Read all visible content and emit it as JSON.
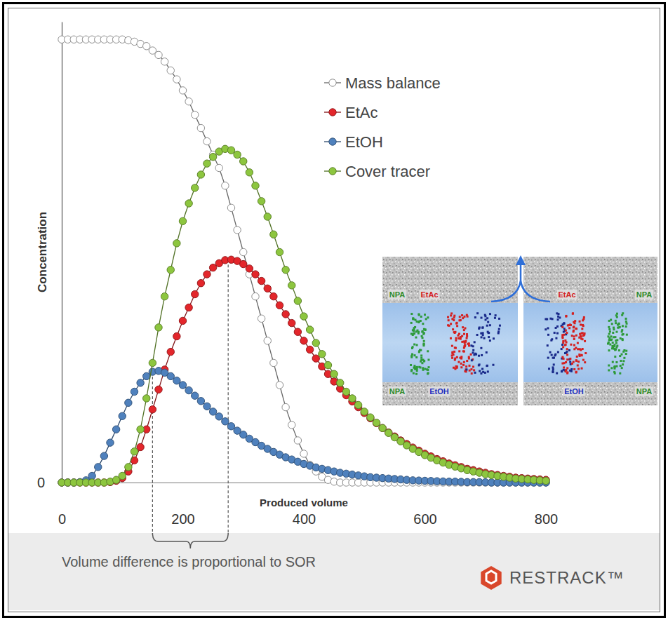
{
  "chart_data": {
    "type": "line",
    "x_label": "Produced volume",
    "y_label": "Concentration",
    "x": [
      0,
      10,
      20,
      30,
      40,
      50,
      60,
      70,
      80,
      90,
      100,
      110,
      120,
      130,
      140,
      150,
      160,
      170,
      180,
      190,
      200,
      210,
      220,
      230,
      240,
      250,
      260,
      270,
      280,
      290,
      300,
      310,
      320,
      330,
      340,
      350,
      360,
      370,
      380,
      390,
      400,
      410,
      420,
      430,
      440,
      450,
      460,
      470,
      480,
      490,
      500,
      510,
      520,
      530,
      540,
      550,
      560,
      570,
      580,
      590,
      600,
      610,
      620,
      630,
      640,
      650,
      660,
      670,
      680,
      690,
      700,
      710,
      720,
      730,
      740,
      750,
      760,
      770,
      780,
      790,
      800
    ],
    "xlim": [
      0,
      800
    ],
    "xticks": [
      0,
      200,
      400,
      600,
      800
    ],
    "ylim": [
      0,
      104
    ],
    "yticks": [
      0
    ],
    "grid": false,
    "legend": "upper right",
    "series": [
      {
        "name": "Mass balance",
        "color": "#8c8c8c",
        "marker": "open-circle",
        "values": [
          100,
          100,
          100,
          100,
          100,
          100,
          100,
          100,
          100,
          100,
          100,
          99.8,
          99.5,
          99,
          98.5,
          97.5,
          96.5,
          95,
          93,
          91,
          88.5,
          86,
          83,
          80,
          77,
          74,
          71,
          67,
          62,
          57,
          52,
          47,
          42,
          37,
          32,
          27,
          22,
          17,
          13,
          9.5,
          6.5,
          4,
          2.5,
          1.3,
          0.6,
          0.2,
          0,
          0,
          0,
          0,
          0,
          0,
          0,
          0,
          0,
          0,
          0,
          0,
          0,
          0,
          0,
          0,
          0,
          0,
          0,
          0,
          0,
          0,
          0,
          0,
          0,
          0,
          0,
          0,
          0,
          0,
          0,
          0,
          0,
          0,
          0
        ]
      },
      {
        "name": "EtAc",
        "color": "#e3262b",
        "marker": "circle",
        "values": [
          0,
          0,
          0,
          0,
          0,
          0,
          0,
          0,
          0.1,
          0.4,
          1,
          2.5,
          5,
          8,
          12,
          16.5,
          21,
          25.5,
          29.5,
          33,
          36.5,
          39.5,
          42.5,
          45,
          47,
          48.5,
          49.5,
          50.2,
          50.3,
          50,
          49.3,
          48.3,
          47,
          45.5,
          43.8,
          42,
          40,
          38,
          36,
          34,
          32,
          30,
          28,
          26.2,
          24.5,
          22.8,
          21.2,
          19.7,
          18.3,
          17,
          15.7,
          14.5,
          13.4,
          12.3,
          11.3,
          10.4,
          9.5,
          8.7,
          7.9,
          7.2,
          6.5,
          5.9,
          5.3,
          4.8,
          4.3,
          3.9,
          3.5,
          3.1,
          2.8,
          2.5,
          2.2,
          1.9,
          1.7,
          1.5,
          1.3,
          1.1,
          1,
          0.9,
          0.8,
          0.7,
          0.6
        ]
      },
      {
        "name": "EtOH",
        "color": "#4f81bd",
        "marker": "circle",
        "values": [
          0,
          0,
          0,
          0.1,
          0.5,
          1.5,
          3.5,
          6,
          9,
          12,
          15,
          18,
          20.5,
          22.5,
          24,
          25,
          25.2,
          24.8,
          24,
          23,
          22,
          20.8,
          19.6,
          18.4,
          17.2,
          16,
          14.9,
          13.8,
          12.7,
          11.7,
          10.8,
          9.9,
          9.1,
          8.3,
          7.6,
          6.9,
          6.3,
          5.7,
          5.2,
          4.7,
          4.2,
          3.8,
          3.4,
          3.1,
          2.8,
          2.5,
          2.2,
          2,
          1.8,
          1.6,
          1.4,
          1.2,
          1.1,
          1,
          0.9,
          0.8,
          0.7,
          0.6,
          0.5,
          0.45,
          0.4,
          0.35,
          0.3,
          0.25,
          0.2,
          0.2,
          0.15,
          0.1,
          0.1,
          0.1,
          0.05,
          0,
          0,
          0,
          0,
          0,
          0,
          0,
          0,
          0,
          0
        ]
      },
      {
        "name": "Cover tracer",
        "color": "#8dc63f",
        "marker": "circle",
        "values": [
          0,
          0,
          0,
          0,
          0,
          0,
          0,
          0,
          0.2,
          0.6,
          1.5,
          3.5,
          7,
          12,
          19,
          27,
          35,
          42,
          48,
          54,
          59,
          63,
          66.5,
          69.5,
          72,
          73.5,
          74.7,
          75.3,
          75,
          74,
          72.5,
          70,
          67,
          63.5,
          60,
          56,
          52,
          48,
          44.5,
          41,
          37.5,
          34.5,
          31.5,
          29,
          26.5,
          24.5,
          22.5,
          20.5,
          19,
          17.5,
          16,
          14.7,
          13.5,
          12.3,
          11.2,
          10.2,
          9.3,
          8.4,
          7.6,
          6.9,
          6.2,
          5.6,
          5,
          4.5,
          4,
          3.6,
          3.2,
          2.8,
          2.5,
          2.2,
          1.9,
          1.7,
          1.5,
          1.3,
          1.1,
          0.9,
          0.8,
          0.7,
          0.6,
          0.5,
          0.4
        ]
      }
    ],
    "annotations": [
      {
        "text": "Volume difference is proportional to SOR",
        "x": [
          150,
          275
        ],
        "y": [
          25,
          50.3
        ]
      }
    ],
    "inset": {
      "top_labels": [
        "NPA",
        "EtAc",
        "EtAc",
        "NPA"
      ],
      "bottom_labels": [
        "NPA",
        "EtOH",
        "EtOH",
        "NPA"
      ]
    },
    "logo": "RESTRACK™"
  }
}
